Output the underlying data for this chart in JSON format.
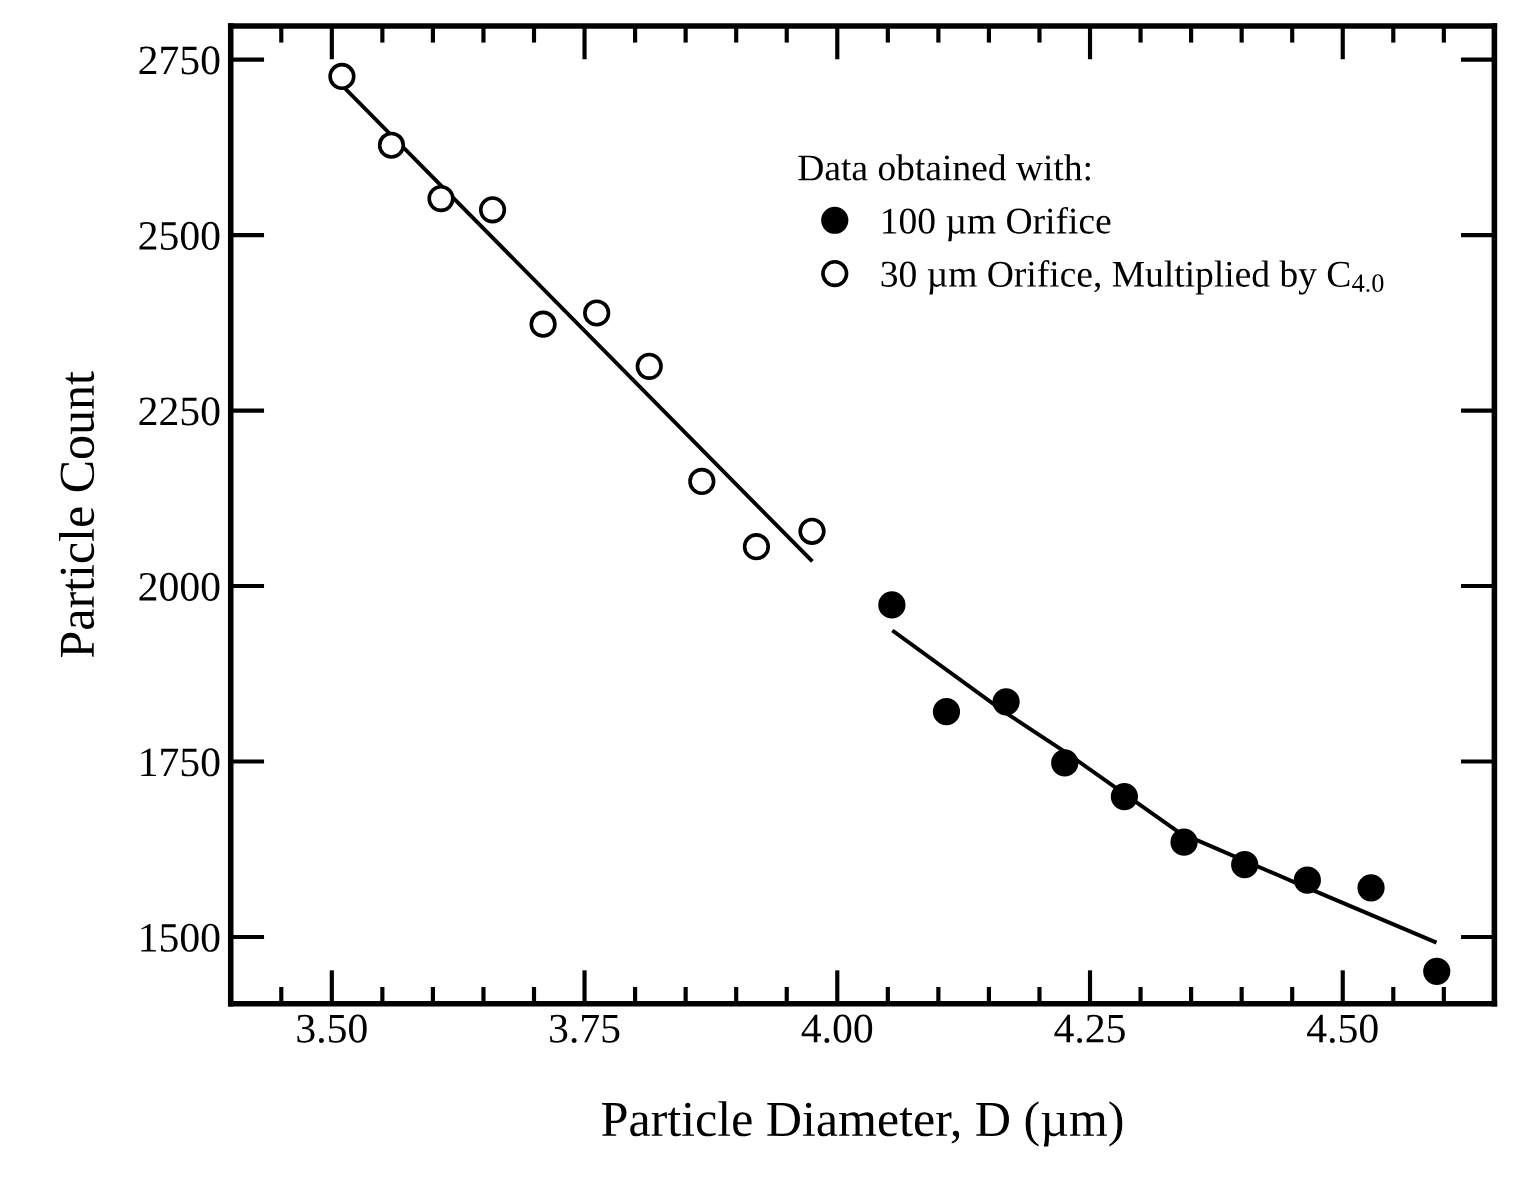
{
  "chart_data": {
    "type": "scatter",
    "xlabel": "Particle Diameter, D (µm)",
    "ylabel": "Particle Count",
    "legend_title": "Data obtained with:",
    "legend": "top right",
    "marker": "circle",
    "grid": false,
    "xlim": [
      3.4,
      4.65
    ],
    "ylim": [
      1405,
      2798
    ],
    "xticks": [
      {
        "value": 3.5,
        "label": "3.50"
      },
      {
        "value": 3.75,
        "label": "3.75"
      },
      {
        "value": 4.0,
        "label": "4.00"
      },
      {
        "value": 4.25,
        "label": "4.25"
      },
      {
        "value": 4.5,
        "label": "4.50"
      }
    ],
    "yticks": [
      1500,
      1750,
      2000,
      2250,
      2500,
      2750
    ],
    "series": [
      {
        "name": "100 µm Orifice",
        "color": "#000000",
        "x": [
          4.054,
          4.108,
          4.167,
          4.225,
          4.284,
          4.343,
          4.403,
          4.465,
          4.528,
          4.593
        ],
        "values": [
          1973,
          1821,
          1835,
          1748,
          1700,
          1635,
          1603,
          1581,
          1570,
          1451
        ]
      },
      {
        "name": "30 µm Orifice, Multiplied by C$_{4.0}$",
        "color": "#ffffff",
        "x": [
          3.51,
          3.559,
          3.608,
          3.659,
          3.709,
          3.762,
          3.814,
          3.866,
          3.92,
          3.975
        ],
        "values": [
          2726,
          2628,
          2552,
          2536,
          2373,
          2389,
          2313,
          2149,
          2056,
          2078
        ]
      },
      {
        "type": "line",
        "color": "#000000",
        "marker": "none",
        "line_style": "solid",
        "x": [
          3.511,
          3.974
        ],
        "values": [
          2712,
          2037
        ]
      },
      {
        "type": "line",
        "color": "#000000",
        "marker": "none",
        "line_style": "solid",
        "x": [
          4.056,
          4.167,
          4.226,
          4.338,
          4.465,
          4.591
        ],
        "values": [
          1935,
          1819,
          1763,
          1649,
          1570,
          1493
        ]
      }
    ]
  }
}
